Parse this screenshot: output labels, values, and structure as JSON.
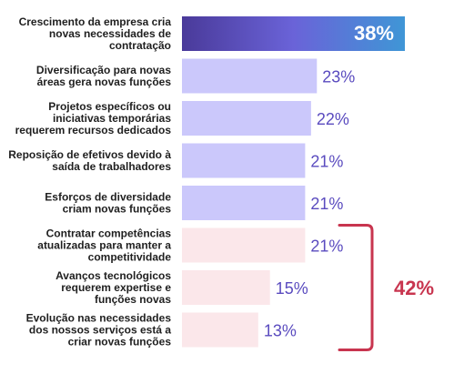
{
  "chart_data": {
    "type": "bar",
    "orientation": "horizontal",
    "categories": [
      [
        "Crescimento da empresa cria",
        "novas necessidades de",
        "contratação"
      ],
      [
        "Diversificação para novas",
        "áreas gera novas funções"
      ],
      [
        "Projetos específicos ou",
        "iniciativas temporárias",
        "requerem recursos dedicados"
      ],
      [
        "Reposição de efetivos devido à",
        "saída de trabalhadores"
      ],
      [
        "Esforços de diversidade",
        "criam novas funções"
      ],
      [
        "Contratar competências",
        "atualizadas para manter a",
        "competitividade"
      ],
      [
        "Avanços tecnológicos",
        "requerem expertise e",
        "funções novas"
      ],
      [
        "Evolução nas necessidades",
        "dos nossos serviços está a",
        "criar novas funções"
      ]
    ],
    "values": [
      38,
      23,
      22,
      21,
      21,
      21,
      15,
      13
    ],
    "value_labels": [
      "38%",
      "23%",
      "22%",
      "21%",
      "21%",
      "21%",
      "15%",
      "13%"
    ],
    "xlim": [
      0,
      38
    ],
    "highlight_group": {
      "from_index": 5,
      "to_index": 7,
      "label": "42%"
    },
    "colors": {
      "top_bar_start": "#4a3a9a",
      "top_bar_mid": "#6a63d8",
      "top_bar_end": "#3f96d6",
      "lavender_bar": "#cbc8fb",
      "pink_bar": "#fbe7ea",
      "value_text": "#5a4bbf",
      "top_value_text": "#ffffff",
      "bracket": "#c8354f"
    }
  }
}
